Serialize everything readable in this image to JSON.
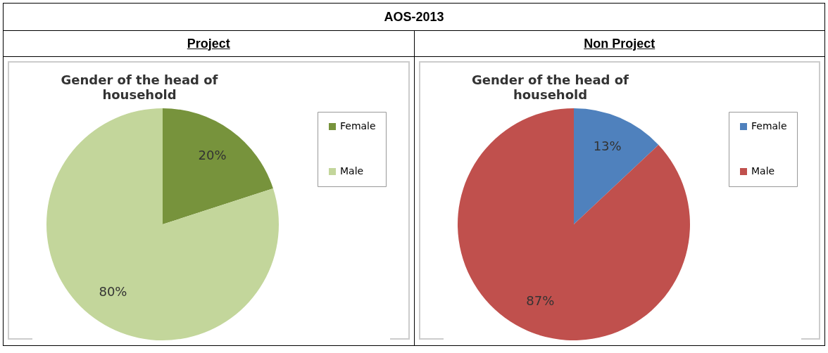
{
  "chart_data": [
    {
      "type": "pie",
      "title": "Gender of the head of household",
      "subtitle": "Project",
      "annotations": [
        "AOS-2013"
      ],
      "categories": [
        "Female",
        "Male"
      ],
      "values": [
        20,
        80
      ],
      "colors": [
        "#77933c",
        "#c3d69b"
      ],
      "value_labels": [
        "20%",
        "80%"
      ],
      "legend": "right"
    },
    {
      "type": "pie",
      "title": "Gender of the head of household",
      "subtitle": "Non Project",
      "categories": [
        "Female",
        "Male"
      ],
      "values": [
        13,
        87
      ],
      "colors": [
        "#4f81bd",
        "#c0504d"
      ],
      "value_labels": [
        "13%",
        "87%"
      ],
      "legend": "right"
    }
  ]
}
